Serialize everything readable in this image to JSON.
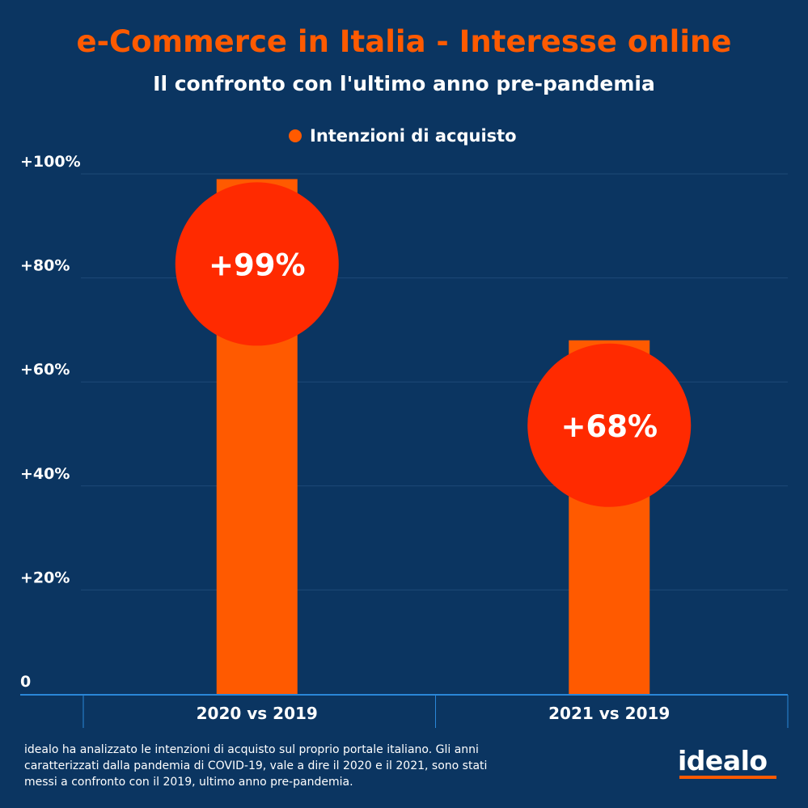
{
  "header": {
    "title": "e-Commerce in Italia - Interesse online",
    "subtitle": "Il confronto con l'ultimo anno pre-pandemia"
  },
  "colors": {
    "background": "#0b3561",
    "bar": "#ff5a00",
    "label_circle": "#ff2a00",
    "title": "#ff5a00",
    "axis": "#2a86d8"
  },
  "chart_data": {
    "type": "bar",
    "categories": [
      "2020 vs 2019",
      "2021 vs 2019"
    ],
    "series": [
      {
        "name": "Intenzioni di acquisto",
        "values": [
          99,
          68
        ]
      }
    ],
    "data_labels": [
      "+99%",
      "+68%"
    ],
    "y_ticks": [
      {
        "value": 0,
        "label": "0"
      },
      {
        "value": 20,
        "label": "+20%"
      },
      {
        "value": 40,
        "label": "+40%"
      },
      {
        "value": 60,
        "label": "+60%"
      },
      {
        "value": 80,
        "label": "+80%"
      },
      {
        "value": 100,
        "label": "+100%"
      }
    ],
    "ylim": [
      0,
      100
    ],
    "grid": true,
    "legend_position": "top-center"
  },
  "footnote": "idealo ha analizzato le intenzioni di acquisto sul proprio portale italiano. Gli anni caratterizzati dalla pandemia di COVID-19, vale a dire il 2020 e il 2021, sono stati messi a confronto con il 2019, ultimo anno pre-pandemia.",
  "logo": {
    "text": "idealo"
  }
}
